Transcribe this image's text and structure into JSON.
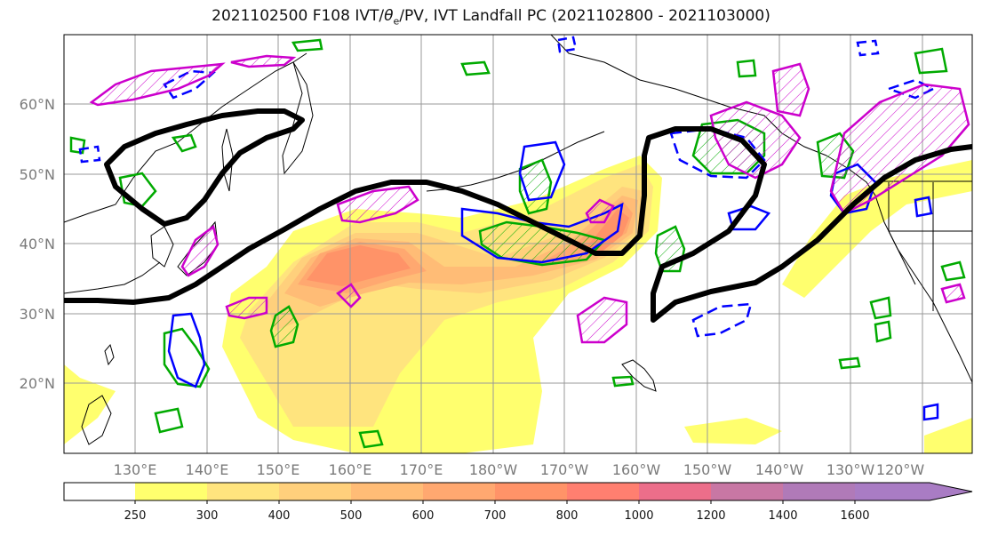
{
  "title": {
    "prefix": "2021102500 F108 IVT/",
    "theta_symbol": "θ",
    "theta_sub": "e",
    "suffix": "/PV, IVT Landfall PC (2021102800 - 2021103000)"
  },
  "map": {
    "lat_labels": [
      "60°N",
      "50°N",
      "40°N",
      "30°N",
      "20°N"
    ],
    "lat_values": [
      60,
      50,
      40,
      30,
      20
    ],
    "lon_labels": [
      "130°E",
      "140°E",
      "150°E",
      "160°E",
      "170°E",
      "180°W",
      "170°W",
      "160°W",
      "150°W",
      "140°W",
      "130°W",
      "120°W"
    ],
    "lon_values": [
      130,
      140,
      150,
      160,
      170,
      180,
      190,
      200,
      210,
      220,
      230,
      240
    ],
    "extent": {
      "lon_min": 120,
      "lon_max": 247,
      "lat_min": 10,
      "lat_max": 70
    },
    "colors": {
      "jet_line": "#000000",
      "pv_contour": "#00aa00",
      "warm_contour": "#0000ff",
      "hatch_contour": "#cc00cc",
      "coast": "#000000",
      "grid": "#999999"
    }
  },
  "colorbar": {
    "tick_labels": [
      "250",
      "300",
      "400",
      "500",
      "600",
      "700",
      "800",
      "1000",
      "1200",
      "1400",
      "1600"
    ],
    "levels": [
      250,
      300,
      400,
      500,
      600,
      700,
      800,
      1000,
      1200,
      1400,
      1600
    ],
    "colors": [
      "#ffffff",
      "#ffff6e",
      "#ffe47e",
      "#ffd07c",
      "#ffbc76",
      "#ffa870",
      "#ff9368",
      "#ff7f70",
      "#ec6e8a",
      "#c877a4",
      "#a97cc4"
    ]
  }
}
